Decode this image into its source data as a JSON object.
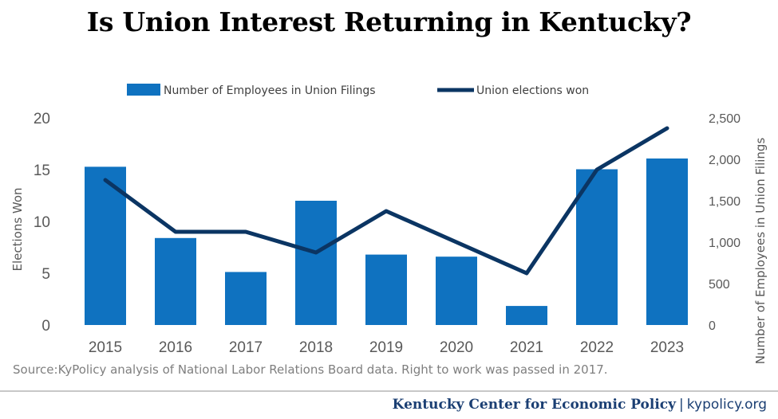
{
  "title": "Is Union Interest Returning in Kentucky?",
  "source": "Source:KyPolicy analysis of National Labor Relations Board data. Right to work was passed in 2017.",
  "footer": {
    "org": "Kentucky Center for Economic Policy",
    "separator": "|",
    "site": "kypolicy.org"
  },
  "colors": {
    "bar": "#0f72c0",
    "line": "#0b3563"
  },
  "chart_data": {
    "type": "bar",
    "categories": [
      "2015",
      "2016",
      "2017",
      "2018",
      "2019",
      "2020",
      "2021",
      "2022",
      "2023"
    ],
    "series": [
      {
        "name": "Number of Employees in Union Filings",
        "type": "bar",
        "axis": "right",
        "values": [
          1910,
          1050,
          640,
          1500,
          850,
          825,
          230,
          1880,
          2010
        ]
      },
      {
        "name": "Union elections won",
        "type": "line",
        "axis": "left",
        "values": [
          14,
          9,
          9,
          7,
          11,
          8,
          5,
          15,
          19
        ]
      }
    ],
    "left_axis": {
      "label": "Elections Won",
      "min": 0,
      "max": 20,
      "ticks": [
        "0",
        "5",
        "10",
        "15",
        "20"
      ]
    },
    "right_axis": {
      "label": "Number of Employees in Union Filings",
      "min": 0,
      "max": 2500,
      "ticks": [
        "0",
        "500",
        "1,000",
        "1,500",
        "2,000",
        "2,500"
      ]
    },
    "legend": {
      "position": "top"
    },
    "grid": false
  }
}
